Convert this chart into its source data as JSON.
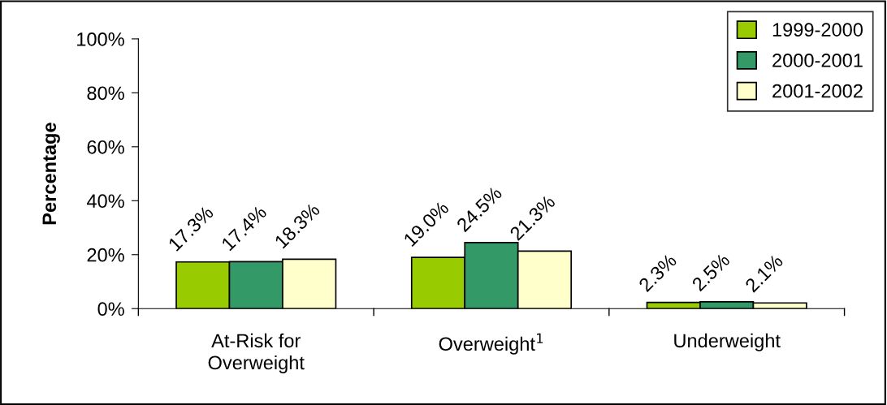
{
  "chart_data": {
    "type": "bar",
    "ylabel": "Percentage",
    "categories": [
      "At-Risk for\nOverweight",
      "Overweight$^{1}$",
      "Underweight"
    ],
    "series": [
      {
        "name": "1999-2000",
        "color": "#99cc00",
        "values": [
          17.3,
          19.0,
          2.3
        ],
        "value_labels": [
          "17.3%",
          "19.0%",
          "2.3%"
        ]
      },
      {
        "name": "2000-2001",
        "color": "#339966",
        "values": [
          17.4,
          24.5,
          2.5
        ],
        "value_labels": [
          "17.4%",
          "24.5%",
          "2.5%"
        ]
      },
      {
        "name": "2001-2002",
        "color": "#ffffcc",
        "values": [
          18.3,
          21.3,
          2.1
        ],
        "value_labels": [
          "18.3%",
          "21.3%",
          "2.1%"
        ]
      }
    ],
    "ylim": [
      0,
      100
    ],
    "yticks": [
      {
        "value": 0,
        "label": "0%"
      },
      {
        "value": 20,
        "label": "20%"
      },
      {
        "value": 40,
        "label": "40%"
      },
      {
        "value": 60,
        "label": "60%"
      },
      {
        "value": 80,
        "label": "80%"
      },
      {
        "value": 100,
        "label": "100%"
      }
    ],
    "legend": "top right",
    "grid": false
  }
}
